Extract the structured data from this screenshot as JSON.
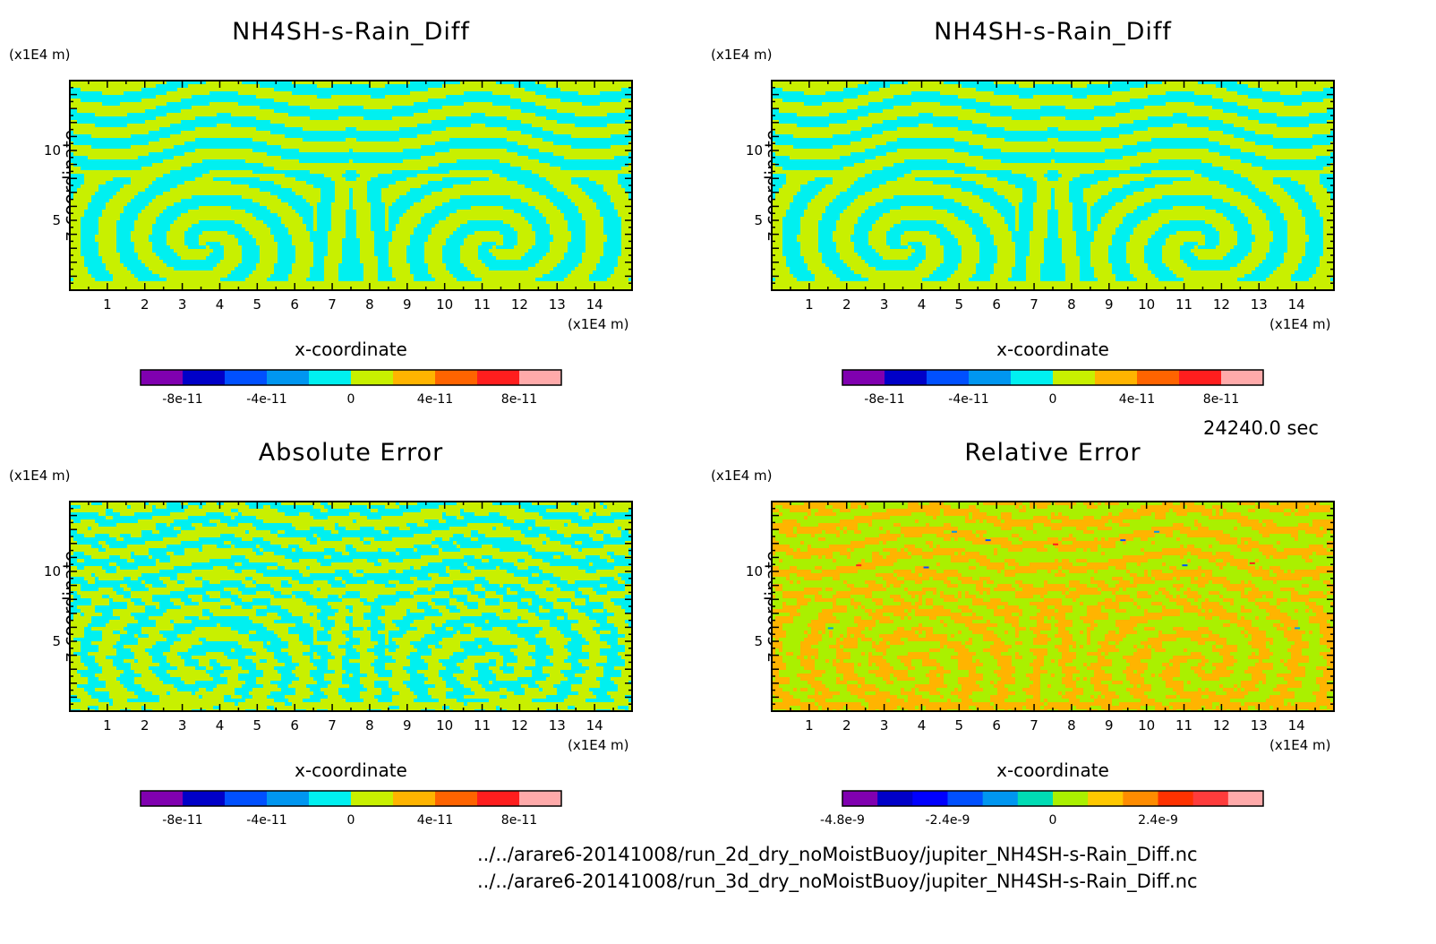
{
  "time_label": "24240.0 sec",
  "footer_lines": [
    "../../arare6-20141008/run_2d_dry_noMoistBuoy/jupiter_NH4SH-s-Rain_Diff.nc",
    "../../arare6-20141008/run_3d_dry_noMoistBuoy/jupiter_NH4SH-s-Rain_Diff.nc"
  ],
  "colors": {
    "cyan": "#00f0f0",
    "yellow_green": "#c8f000",
    "orange_bg": "#ffb400",
    "lime": "#aaf000"
  },
  "chart_data": [
    {
      "type": "heatmap",
      "title": "NH4SH-s-Rain_Diff",
      "xlabel": "x-coordinate",
      "ylabel": "z-coordinate",
      "x_unit": "(x1E4 m)",
      "y_unit": "(x1E4 m)",
      "xlim": [
        0,
        15
      ],
      "ylim": [
        0,
        15
      ],
      "xticks": [
        "1",
        "2",
        "3",
        "4",
        "5",
        "6",
        "7",
        "8",
        "9",
        "10",
        "11",
        "12",
        "13",
        "14"
      ],
      "yticks": [
        "5",
        "10"
      ],
      "pattern": "symmetric-vortex",
      "colorbar": {
        "colors": [
          "#8000b0",
          "#0000c8",
          "#0050ff",
          "#0096f0",
          "#00f0f0",
          "#c8f000",
          "#ffb400",
          "#ff6400",
          "#ff1e1e",
          "#ffaaaa"
        ],
        "labels": [
          "-8e-11",
          "-4e-11",
          "0",
          "4e-11",
          "8e-11"
        ]
      }
    },
    {
      "type": "heatmap",
      "title": "NH4SH-s-Rain_Diff",
      "xlabel": "x-coordinate",
      "ylabel": "z-coordinate",
      "x_unit": "(x1E4 m)",
      "y_unit": "(x1E4 m)",
      "xlim": [
        0,
        15
      ],
      "ylim": [
        0,
        15
      ],
      "xticks": [
        "1",
        "2",
        "3",
        "4",
        "5",
        "6",
        "7",
        "8",
        "9",
        "10",
        "11",
        "12",
        "13",
        "14"
      ],
      "yticks": [
        "5",
        "10"
      ],
      "pattern": "symmetric-vortex",
      "colorbar": {
        "colors": [
          "#8000b0",
          "#0000c8",
          "#0050ff",
          "#0096f0",
          "#00f0f0",
          "#c8f000",
          "#ffb400",
          "#ff6400",
          "#ff1e1e",
          "#ffaaaa"
        ],
        "labels": [
          "-8e-11",
          "-4e-11",
          "0",
          "4e-11",
          "8e-11"
        ]
      }
    },
    {
      "type": "heatmap",
      "title": "Absolute Error",
      "xlabel": "x-coordinate",
      "ylabel": "z-coordinate",
      "x_unit": "(x1E4 m)",
      "y_unit": "(x1E4 m)",
      "xlim": [
        0,
        15
      ],
      "ylim": [
        0,
        15
      ],
      "xticks": [
        "1",
        "2",
        "3",
        "4",
        "5",
        "6",
        "7",
        "8",
        "9",
        "10",
        "11",
        "12",
        "13",
        "14"
      ],
      "yticks": [
        "5",
        "10"
      ],
      "pattern": "symmetric-noisy",
      "colorbar": {
        "colors": [
          "#8000b0",
          "#0000c8",
          "#0050ff",
          "#0096f0",
          "#00f0f0",
          "#c8f000",
          "#ffb400",
          "#ff6400",
          "#ff1e1e",
          "#ffaaaa"
        ],
        "labels": [
          "-8e-11",
          "-4e-11",
          "0",
          "4e-11",
          "8e-11"
        ]
      }
    },
    {
      "type": "heatmap",
      "title": "Relative Error",
      "xlabel": "x-coordinate",
      "ylabel": "z-coordinate",
      "x_unit": "(x1E4 m)",
      "y_unit": "(x1E4 m)",
      "xlim": [
        0,
        15
      ],
      "ylim": [
        0,
        15
      ],
      "xticks": [
        "1",
        "2",
        "3",
        "4",
        "5",
        "6",
        "7",
        "8",
        "9",
        "10",
        "11",
        "12",
        "13",
        "14"
      ],
      "yticks": [
        "5",
        "10"
      ],
      "pattern": "relative",
      "colorbar": {
        "colors": [
          "#8000b0",
          "#0000c8",
          "#0000ff",
          "#0050ff",
          "#0096f0",
          "#00dcb4",
          "#aaf000",
          "#ffc800",
          "#ff8c00",
          "#ff3200",
          "#ff3c3c",
          "#ffaaaa"
        ],
        "labels": [
          "-4.8e-9",
          "-2.4e-9",
          "0",
          "2.4e-9"
        ]
      }
    }
  ]
}
